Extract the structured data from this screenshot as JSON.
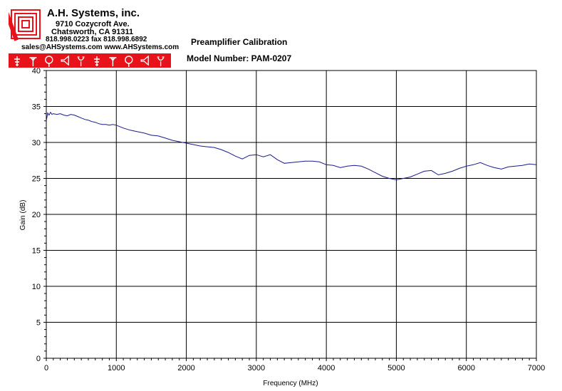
{
  "company": {
    "name": "A.H. Systems, inc.",
    "address_line1": "9710 Cozycroft Ave.",
    "address_line2": "Chatsworth, CA 91311",
    "phone": "818.998.0223 fax 818.998.6892",
    "web": "sales@AHSystems.com www.AHSystems.com"
  },
  "icons": [
    "antenna-icon",
    "dipole-icon",
    "loop-icon",
    "horn-icon",
    "biconical-icon",
    "antenna-icon",
    "dipole-icon",
    "loop-icon",
    "horn-icon",
    "biconical-icon"
  ],
  "colors": {
    "brand_red": "#e8121a",
    "series_line": "#1a1a8c",
    "grid": "#000000"
  },
  "chart_data": {
    "type": "line",
    "title": "Preamplifier Calibration",
    "subtitle": "Model Number: PAM-0207",
    "xlabel": "Frequency (MHz)",
    "ylabel": "Gain (dB)",
    "xlim": [
      0,
      7000
    ],
    "ylim": [
      0,
      40
    ],
    "xticks": [
      0,
      1000,
      2000,
      3000,
      4000,
      5000,
      6000,
      7000
    ],
    "yticks": [
      0,
      5,
      10,
      15,
      20,
      25,
      30,
      35,
      40
    ],
    "grid": true,
    "series": [
      {
        "x": [
          0,
          20,
          40,
          60,
          80,
          100,
          150,
          200,
          250,
          300,
          350,
          400,
          450,
          500,
          550,
          600,
          650,
          700,
          750,
          800,
          850,
          900,
          950,
          1000,
          1100,
          1200,
          1300,
          1400,
          1500,
          1600,
          1700,
          1800,
          1900,
          2000,
          2100,
          2200,
          2300,
          2400,
          2500,
          2600,
          2700,
          2800,
          2900,
          3000,
          3100,
          3200,
          3300,
          3400,
          3500,
          3600,
          3700,
          3800,
          3900,
          4000,
          4100,
          4200,
          4300,
          4400,
          4500,
          4600,
          4700,
          4800,
          4900,
          5000,
          5100,
          5200,
          5300,
          5400,
          5500,
          5600,
          5700,
          5800,
          5900,
          6000,
          6100,
          6200,
          6300,
          6400,
          6500,
          6600,
          6700,
          6800,
          6900,
          7000
        ],
        "y": [
          33.0,
          34.1,
          33.8,
          34.2,
          33.9,
          34.0,
          33.9,
          34.0,
          33.8,
          33.7,
          33.9,
          33.8,
          33.6,
          33.4,
          33.2,
          33.1,
          32.9,
          32.8,
          32.6,
          32.5,
          32.5,
          32.4,
          32.5,
          32.4,
          32.0,
          31.7,
          31.5,
          31.3,
          31.0,
          30.9,
          30.6,
          30.3,
          30.1,
          29.9,
          29.7,
          29.5,
          29.4,
          29.3,
          29.0,
          28.6,
          28.1,
          27.7,
          28.2,
          28.3,
          28.0,
          28.3,
          27.6,
          27.1,
          27.2,
          27.3,
          27.4,
          27.4,
          27.3,
          26.9,
          26.8,
          26.5,
          26.7,
          26.8,
          26.7,
          26.3,
          25.8,
          25.3,
          25.0,
          24.8,
          25.0,
          25.2,
          25.6,
          26.0,
          26.1,
          25.5,
          25.7,
          26.0,
          26.4,
          26.7,
          26.9,
          27.2,
          26.8,
          26.5,
          26.3,
          26.6,
          26.7,
          26.8,
          27.0,
          26.9
        ]
      }
    ]
  }
}
